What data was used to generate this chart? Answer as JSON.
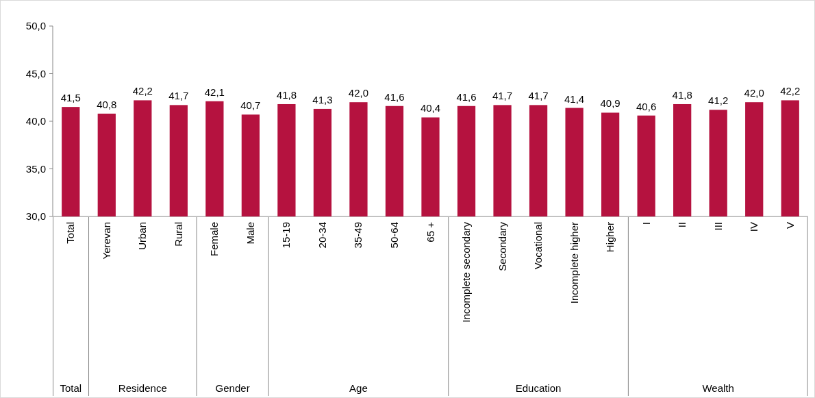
{
  "chart_data": {
    "type": "bar",
    "categories": [
      "Total",
      "Yerevan",
      "Urban",
      "Rural",
      "Female",
      "Male",
      "15-19",
      "20-34",
      "35-49",
      "50-64",
      "65 +",
      "Incomplete secondary",
      "Secondary",
      "Vocational",
      "Incomplete higher",
      "Higher",
      "I",
      "II",
      "III",
      "IV",
      "V"
    ],
    "values": [
      41.5,
      40.8,
      42.2,
      41.7,
      42.1,
      40.7,
      41.8,
      41.3,
      42.0,
      41.6,
      40.4,
      41.6,
      41.7,
      41.7,
      41.4,
      40.9,
      40.6,
      41.8,
      41.2,
      42.0,
      42.2
    ],
    "value_labels": [
      "41,5",
      "40,8",
      "42,2",
      "41,7",
      "42,1",
      "40,7",
      "41,8",
      "41,3",
      "42,0",
      "41,6",
      "40,4",
      "41,6",
      "41,7",
      "41,7",
      "41,4",
      "40,9",
      "40,6",
      "41,8",
      "41,2",
      "42,0",
      "42,2"
    ],
    "color": "#b5123f",
    "ylim": [
      30,
      50
    ],
    "yticks": [
      {
        "value": 30,
        "label": "30,0"
      },
      {
        "value": 35,
        "label": "35,0"
      },
      {
        "value": 40,
        "label": "40,0"
      },
      {
        "value": 45,
        "label": "45,0"
      },
      {
        "value": 50,
        "label": "50,0"
      }
    ],
    "grid": false,
    "annotations": [
      "Total",
      "Residence",
      "Gender",
      "Age",
      "Education",
      "Wealth"
    ]
  }
}
